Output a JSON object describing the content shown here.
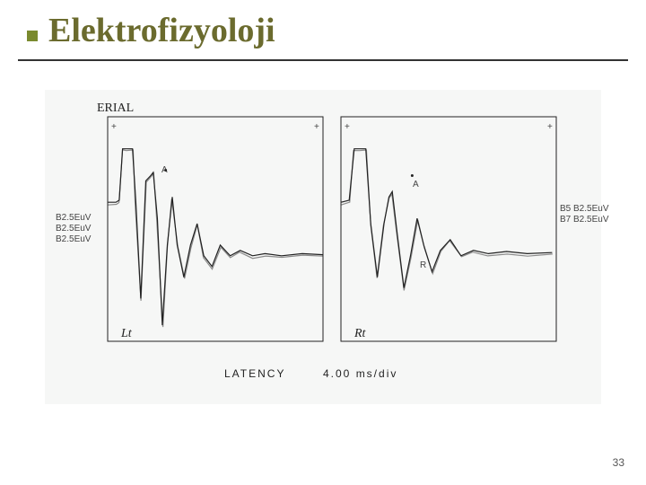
{
  "title": "Elektrofizyoloji",
  "page_number": "33",
  "chart": {
    "type": "line",
    "background_color": "#f6f7f6",
    "frame_color": "#222222",
    "trace_color": "#222222",
    "trace_width": 1.2,
    "x_axis": {
      "label": "LATENCY",
      "unit": "4.00 ms/div",
      "fontsize": 12
    },
    "panels": [
      {
        "name": "Lt",
        "top_label": "ERIAL",
        "scale_labels": [
          "B2.5EuV",
          "B2.5EuV",
          "B2.5EuV"
        ],
        "marker_labels": [
          "A"
        ],
        "points": [
          [
            0,
            80
          ],
          [
            10,
            80
          ],
          [
            14,
            78
          ],
          [
            18,
            30
          ],
          [
            22,
            30
          ],
          [
            30,
            30
          ],
          [
            34,
            80
          ],
          [
            40,
            170
          ],
          [
            46,
            60
          ],
          [
            52,
            55
          ],
          [
            55,
            52
          ],
          [
            60,
            95
          ],
          [
            66,
            195
          ],
          [
            72,
            120
          ],
          [
            78,
            75
          ],
          [
            84,
            120
          ],
          [
            92,
            150
          ],
          [
            100,
            120
          ],
          [
            108,
            100
          ],
          [
            116,
            130
          ],
          [
            126,
            140
          ],
          [
            136,
            120
          ],
          [
            148,
            130
          ],
          [
            160,
            125
          ],
          [
            175,
            130
          ],
          [
            190,
            128
          ],
          [
            210,
            130
          ],
          [
            235,
            128
          ],
          [
            260,
            129
          ]
        ],
        "scatter": [
          [
            70,
            50
          ]
        ]
      },
      {
        "name": "Rt",
        "scale_labels": [
          "B5  B2.5EuV",
          "B7  B2.5EuV"
        ],
        "marker_labels": [
          "A",
          "R"
        ],
        "points": [
          [
            0,
            80
          ],
          [
            10,
            78
          ],
          [
            16,
            30
          ],
          [
            22,
            30
          ],
          [
            30,
            30
          ],
          [
            36,
            100
          ],
          [
            44,
            150
          ],
          [
            52,
            100
          ],
          [
            58,
            75
          ],
          [
            62,
            70
          ],
          [
            68,
            110
          ],
          [
            76,
            160
          ],
          [
            84,
            130
          ],
          [
            92,
            95
          ],
          [
            100,
            120
          ],
          [
            110,
            145
          ],
          [
            120,
            125
          ],
          [
            132,
            115
          ],
          [
            145,
            130
          ],
          [
            160,
            125
          ],
          [
            178,
            128
          ],
          [
            200,
            126
          ],
          [
            225,
            128
          ],
          [
            255,
            127
          ]
        ],
        "scatter": [
          [
            86,
            55
          ]
        ]
      }
    ]
  },
  "colors": {
    "title_color": "#6b6b2e",
    "bullet_color": "#7a8a2e",
    "rule_color": "#333333"
  }
}
